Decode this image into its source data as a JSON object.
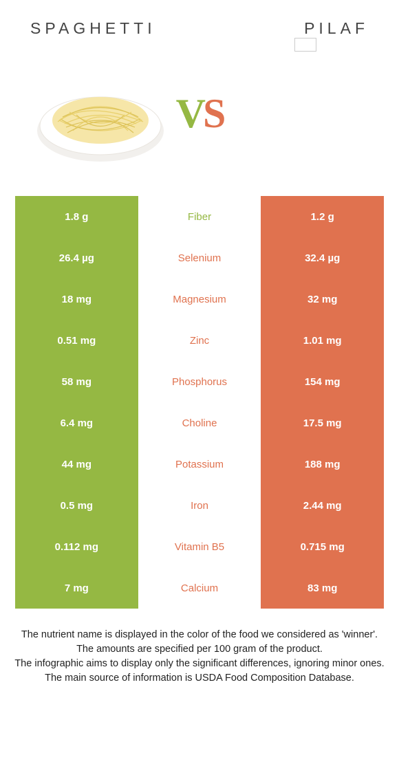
{
  "colors": {
    "left": "#95b843",
    "right": "#e0724f",
    "vs_v": "#95b843",
    "vs_s": "#e0724f"
  },
  "header": {
    "left_title": "SPAGHETTI",
    "right_title": "PILAF"
  },
  "vs": {
    "v": "V",
    "s": "S"
  },
  "rows": [
    {
      "left": "1.8 g",
      "name": "Fiber",
      "right": "1.2 g",
      "winner": "left"
    },
    {
      "left": "26.4 µg",
      "name": "Selenium",
      "right": "32.4 µg",
      "winner": "right"
    },
    {
      "left": "18 mg",
      "name": "Magnesium",
      "right": "32 mg",
      "winner": "right"
    },
    {
      "left": "0.51 mg",
      "name": "Zinc",
      "right": "1.01 mg",
      "winner": "right"
    },
    {
      "left": "58 mg",
      "name": "Phosphorus",
      "right": "154 mg",
      "winner": "right"
    },
    {
      "left": "6.4 mg",
      "name": "Choline",
      "right": "17.5 mg",
      "winner": "right"
    },
    {
      "left": "44 mg",
      "name": "Potassium",
      "right": "188 mg",
      "winner": "right"
    },
    {
      "left": "0.5 mg",
      "name": "Iron",
      "right": "2.44 mg",
      "winner": "right"
    },
    {
      "left": "0.112 mg",
      "name": "Vitamin B5",
      "right": "0.715 mg",
      "winner": "right"
    },
    {
      "left": "7 mg",
      "name": "Calcium",
      "right": "83 mg",
      "winner": "right"
    }
  ],
  "footnotes": {
    "l1": "The nutrient name is displayed in the color of the food we considered as 'winner'.",
    "l2": "The amounts are specified per 100 gram of the product.",
    "l3": "The infographic aims to display only the significant differences, ignoring minor ones.",
    "l4": "The main source of information is USDA Food Composition Database."
  }
}
